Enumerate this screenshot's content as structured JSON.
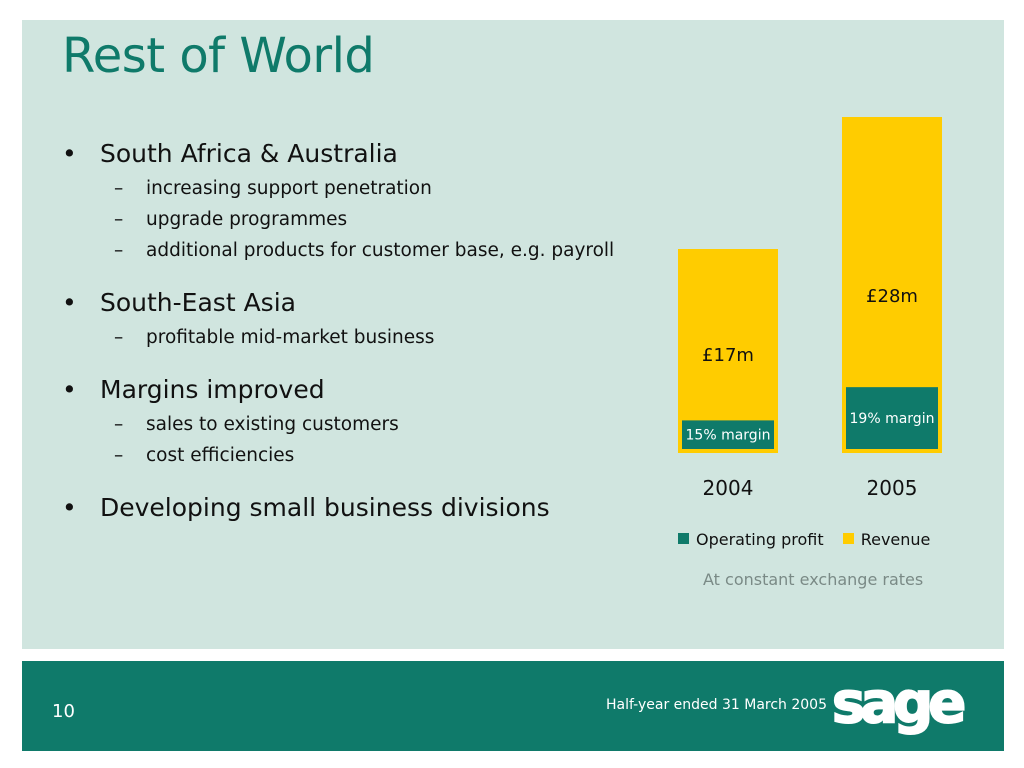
{
  "slide": {
    "title": "Rest of World",
    "page_number": "10",
    "footer_text": "Half-year ended 31 March 2005",
    "logo_text": "sage"
  },
  "bullets": [
    {
      "label": "South Africa & Australia",
      "subs": [
        "increasing support penetration",
        "upgrade programmes",
        "additional products for customer base, e.g. payroll"
      ]
    },
    {
      "label": "South-East Asia",
      "subs": [
        "profitable mid-market business"
      ]
    },
    {
      "label": "Margins improved",
      "subs": [
        "sales to existing customers",
        "cost efficiencies"
      ]
    },
    {
      "label": "Developing small business divisions",
      "subs": []
    }
  ],
  "bullet_symbol": "•",
  "dash_symbol": "–",
  "chart_data": {
    "type": "bar",
    "categories": [
      "2004",
      "2005"
    ],
    "series": [
      {
        "name": "Revenue",
        "values": [
          17,
          28
        ],
        "labels": [
          "£17m",
          "£28m"
        ],
        "color": "#ffcc00"
      },
      {
        "name": "Operating profit",
        "margin_labels": [
          "15% margin",
          "19% margin"
        ],
        "margins_pct": [
          15,
          19
        ],
        "color": "#0f7a6a"
      }
    ],
    "legend": [
      "Operating profit",
      "Revenue"
    ],
    "legend_position": "bottom",
    "note": "At constant exchange rates",
    "grid": false
  },
  "colors": {
    "accent": "#0f7a6a",
    "revenue": "#ffcc00",
    "panel": "#d0e5df"
  }
}
